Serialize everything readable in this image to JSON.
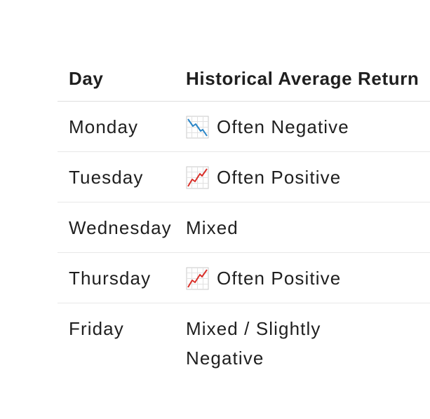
{
  "table": {
    "headers": {
      "day": "Day",
      "return": "Historical Average Return"
    },
    "rows": [
      {
        "day": "Monday",
        "icon": "chart-decreasing-icon",
        "return": "Often Negative"
      },
      {
        "day": "Tuesday",
        "icon": "chart-increasing-icon",
        "return": "Often Positive"
      },
      {
        "day": "Wednesday",
        "icon": "",
        "return": "Mixed"
      },
      {
        "day": "Thursday",
        "icon": "chart-increasing-icon",
        "return": "Often Positive"
      },
      {
        "day": "Friday",
        "icon": "",
        "return": "Mixed / Slightly Negative"
      }
    ]
  },
  "colors": {
    "decreasing_line": "#2a86c8",
    "increasing_line": "#d9312b",
    "grid": "#c9c9c9"
  }
}
